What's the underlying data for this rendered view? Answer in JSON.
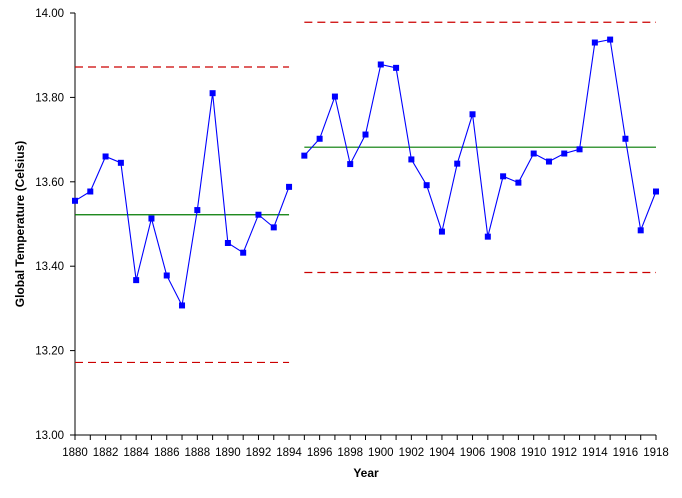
{
  "chart_data": {
    "type": "line",
    "title": "",
    "xlabel": "Year",
    "ylabel": "Global Temperature (Celsius)",
    "xlim": [
      1880,
      1918
    ],
    "ylim": [
      13.0,
      14.0
    ],
    "y_ticks": [
      "13.00",
      "13.20",
      "13.40",
      "13.60",
      "13.80",
      "14.00"
    ],
    "x_ticks": [
      "1880",
      "1882",
      "1884",
      "1886",
      "1888",
      "1890",
      "1892",
      "1894",
      "1896",
      "1898",
      "1900",
      "1902",
      "1904",
      "1906",
      "1908",
      "1910",
      "1912",
      "1914",
      "1916",
      "1918"
    ],
    "grid": false,
    "colors": {
      "series": "#0000ff",
      "marker": "#0000ff",
      "center_line": "#007a00",
      "control_limits": "#cc0000",
      "axes": "#000000"
    },
    "series": [
      {
        "x": [
          1880,
          1881,
          1882,
          1883,
          1884,
          1885,
          1886,
          1887,
          1888,
          1889,
          1890,
          1891,
          1892,
          1893,
          1894
        ],
        "values": [
          13.555,
          13.577,
          13.66,
          13.645,
          13.367,
          13.513,
          13.378,
          13.307,
          13.533,
          13.81,
          13.455,
          13.432,
          13.522,
          13.492,
          13.588
        ]
      },
      {
        "x": [
          1895,
          1896,
          1897,
          1898,
          1899,
          1900,
          1901,
          1902,
          1903,
          1904,
          1905,
          1906,
          1907,
          1908,
          1909,
          1910,
          1911,
          1912,
          1913,
          1914,
          1915,
          1916,
          1917,
          1918
        ],
        "values": [
          13.662,
          13.702,
          13.802,
          13.642,
          13.712,
          13.878,
          13.87,
          13.653,
          13.592,
          13.482,
          13.643,
          13.76,
          13.47,
          13.613,
          13.598,
          13.667,
          13.648,
          13.667,
          13.677,
          13.93,
          13.937,
          13.702,
          13.485,
          13.577
        ]
      }
    ],
    "reference_lines": [
      {
        "kind": "center",
        "style": "solid",
        "x_from": 1880,
        "x_to": 1894,
        "y": 13.522
      },
      {
        "kind": "upper-limit",
        "style": "dashed",
        "x_from": 1880,
        "x_to": 1894,
        "y": 13.872
      },
      {
        "kind": "lower-limit",
        "style": "dashed",
        "x_from": 1880,
        "x_to": 1894,
        "y": 13.172
      },
      {
        "kind": "center",
        "style": "solid",
        "x_from": 1895,
        "x_to": 1918,
        "y": 13.682
      },
      {
        "kind": "upper-limit",
        "style": "dashed",
        "x_from": 1895,
        "x_to": 1918,
        "y": 13.978
      },
      {
        "kind": "lower-limit",
        "style": "dashed",
        "x_from": 1895,
        "x_to": 1918,
        "y": 13.385
      }
    ]
  }
}
